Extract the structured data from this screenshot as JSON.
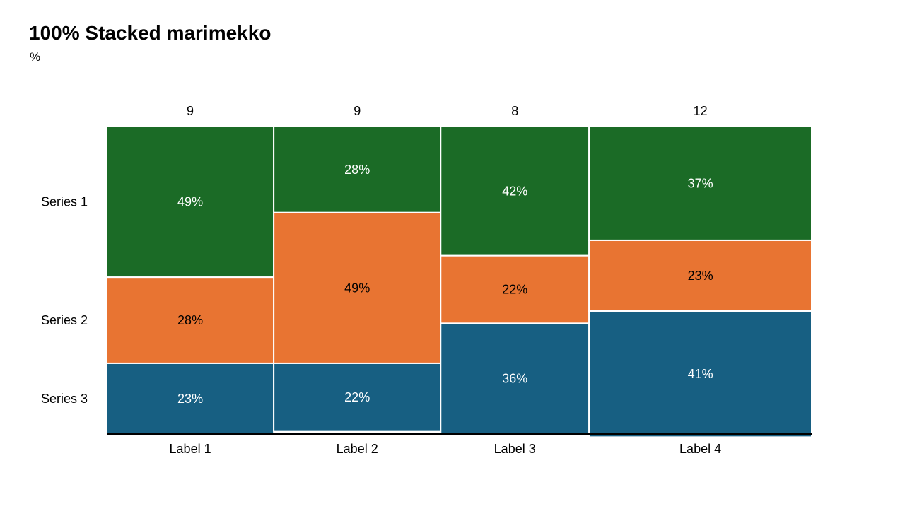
{
  "title": "100% Stacked marimekko",
  "subtitle": "%",
  "colors": {
    "Series 1": "#1b6b26",
    "Series 2": "#e87432",
    "Series 3": "#175f82"
  },
  "chart_data": {
    "type": "bar",
    "subtype": "marimekko-100-stacked",
    "categories": [
      "Label 1",
      "Label 2",
      "Label 3",
      "Label 4"
    ],
    "widths": [
      9,
      9,
      8,
      12
    ],
    "series": [
      {
        "name": "Series 1",
        "values": [
          49,
          28,
          42,
          37
        ]
      },
      {
        "name": "Series 2",
        "values": [
          28,
          49,
          22,
          23
        ]
      },
      {
        "name": "Series 3",
        "values": [
          23,
          22,
          36,
          41
        ]
      }
    ],
    "unit": "%",
    "ylim": [
      0,
      100
    ],
    "legend": "left"
  }
}
